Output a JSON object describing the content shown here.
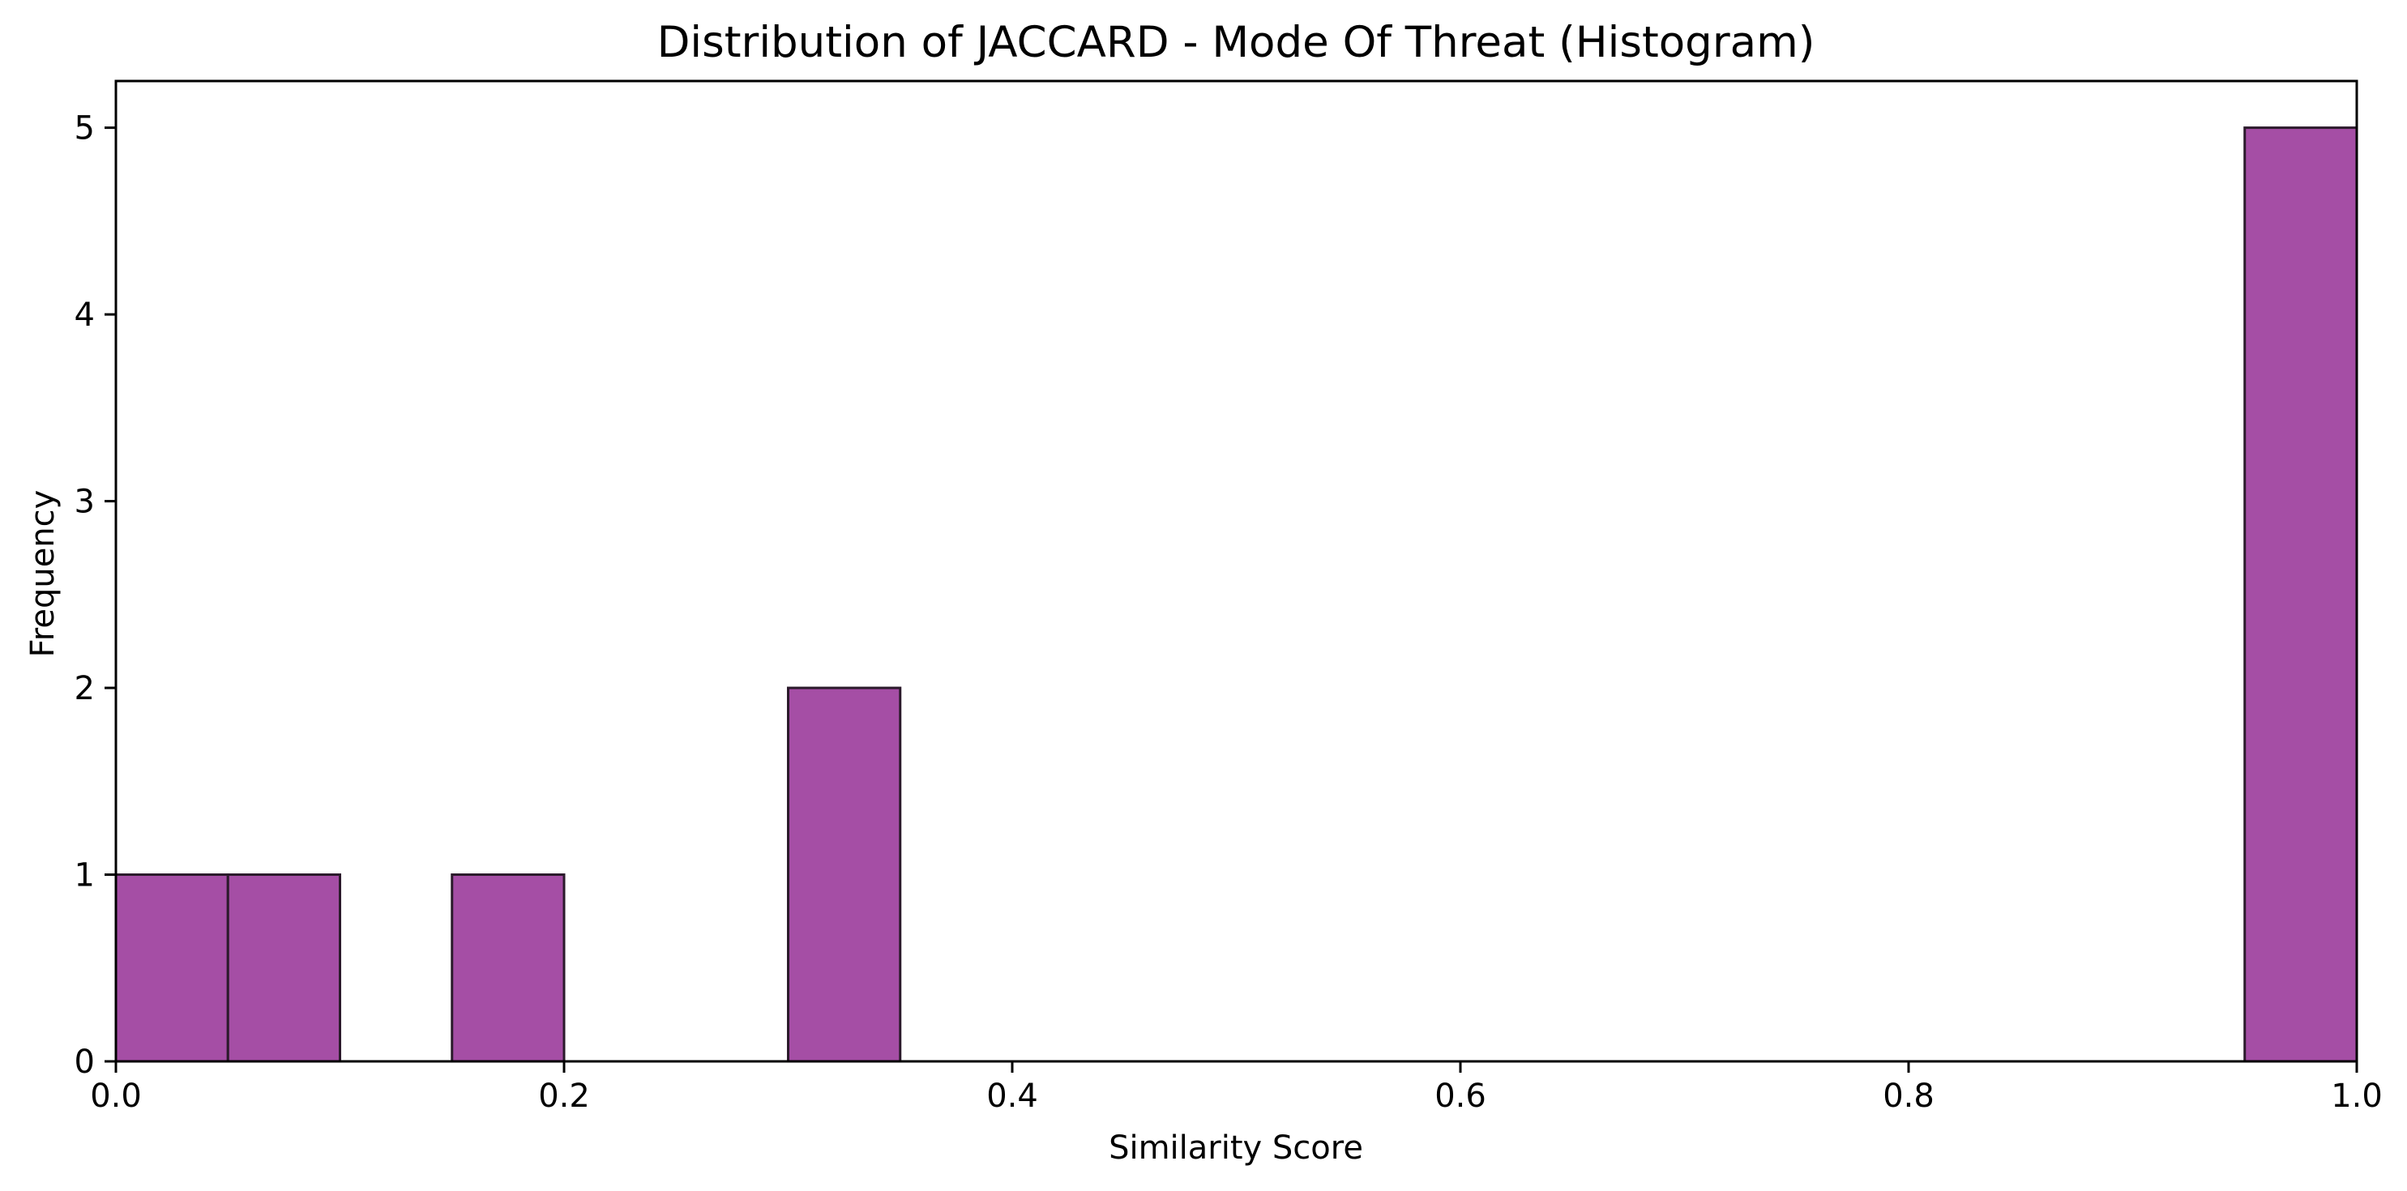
{
  "chart_data": {
    "type": "bar",
    "title": "Distribution of JACCARD - Mode Of Threat (Histogram)",
    "xlabel": "Similarity Score",
    "ylabel": "Frequency",
    "xlim": [
      0.0,
      1.0
    ],
    "ylim": [
      0,
      5.25
    ],
    "bin_width": 0.05,
    "bins": [
      {
        "x0": 0.0,
        "x1": 0.05,
        "count": 1
      },
      {
        "x0": 0.05,
        "x1": 0.1,
        "count": 1
      },
      {
        "x0": 0.1,
        "x1": 0.15,
        "count": 0
      },
      {
        "x0": 0.15,
        "x1": 0.2,
        "count": 1
      },
      {
        "x0": 0.2,
        "x1": 0.25,
        "count": 0
      },
      {
        "x0": 0.25,
        "x1": 0.3,
        "count": 0
      },
      {
        "x0": 0.3,
        "x1": 0.35,
        "count": 2
      },
      {
        "x0": 0.35,
        "x1": 0.4,
        "count": 0
      },
      {
        "x0": 0.4,
        "x1": 0.45,
        "count": 0
      },
      {
        "x0": 0.45,
        "x1": 0.5,
        "count": 0
      },
      {
        "x0": 0.5,
        "x1": 0.55,
        "count": 0
      },
      {
        "x0": 0.55,
        "x1": 0.6,
        "count": 0
      },
      {
        "x0": 0.6,
        "x1": 0.65,
        "count": 0
      },
      {
        "x0": 0.65,
        "x1": 0.7,
        "count": 0
      },
      {
        "x0": 0.7,
        "x1": 0.75,
        "count": 0
      },
      {
        "x0": 0.75,
        "x1": 0.8,
        "count": 0
      },
      {
        "x0": 0.8,
        "x1": 0.85,
        "count": 0
      },
      {
        "x0": 0.85,
        "x1": 0.9,
        "count": 0
      },
      {
        "x0": 0.9,
        "x1": 0.95,
        "count": 0
      },
      {
        "x0": 0.95,
        "x1": 1.0,
        "count": 5
      }
    ],
    "x_ticks": [
      {
        "value": 0.0,
        "label": "0.0"
      },
      {
        "value": 0.2,
        "label": "0.2"
      },
      {
        "value": 0.4,
        "label": "0.4"
      },
      {
        "value": 0.6,
        "label": "0.6"
      },
      {
        "value": 0.8,
        "label": "0.8"
      },
      {
        "value": 1.0,
        "label": "1.0"
      }
    ],
    "y_ticks": [
      {
        "value": 0,
        "label": "0"
      },
      {
        "value": 1,
        "label": "1"
      },
      {
        "value": 2,
        "label": "2"
      },
      {
        "value": 3,
        "label": "3"
      },
      {
        "value": 4,
        "label": "4"
      },
      {
        "value": 5,
        "label": "5"
      }
    ],
    "grid": false,
    "legend": "none",
    "colors": {
      "bar_fill": "#a54ea5",
      "bar_edge": "#2b1a2b",
      "axis": "#000000",
      "background": "#ffffff"
    }
  }
}
